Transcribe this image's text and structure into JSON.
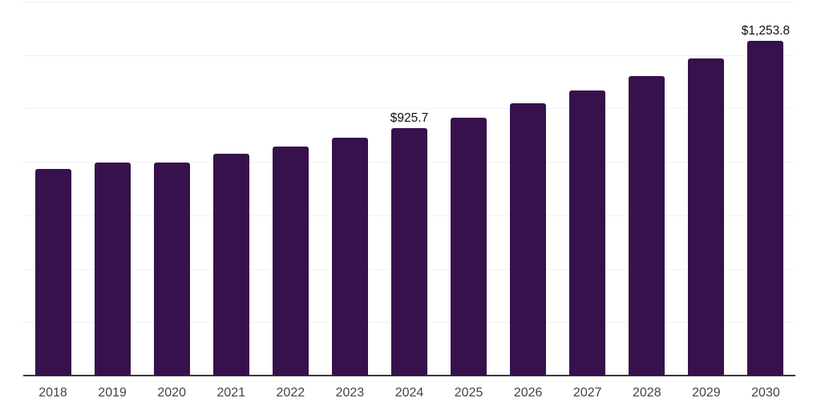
{
  "chart_data": {
    "type": "bar",
    "title": "",
    "xlabel": "",
    "ylabel": "",
    "categories": [
      "2018",
      "2019",
      "2020",
      "2021",
      "2022",
      "2023",
      "2024",
      "2025",
      "2026",
      "2027",
      "2028",
      "2029",
      "2030"
    ],
    "values": [
      772,
      796,
      797,
      829,
      856,
      889,
      925.7,
      966,
      1018,
      1067,
      1121,
      1187,
      1253.8
    ],
    "data_labels": {
      "2024": "$925.7",
      "2030": "$1,253.8"
    },
    "ylim": [
      0,
      1400
    ],
    "grid_step": 200,
    "grid": "on",
    "legend": "none",
    "bar_corner_radius_px": 3,
    "colors": {
      "bar": "#36114b",
      "gridline": "#f2f2f2",
      "axis": "#3b3b3b",
      "tick_label": "#444444",
      "data_label": "#111111",
      "background": "#ffffff"
    }
  }
}
